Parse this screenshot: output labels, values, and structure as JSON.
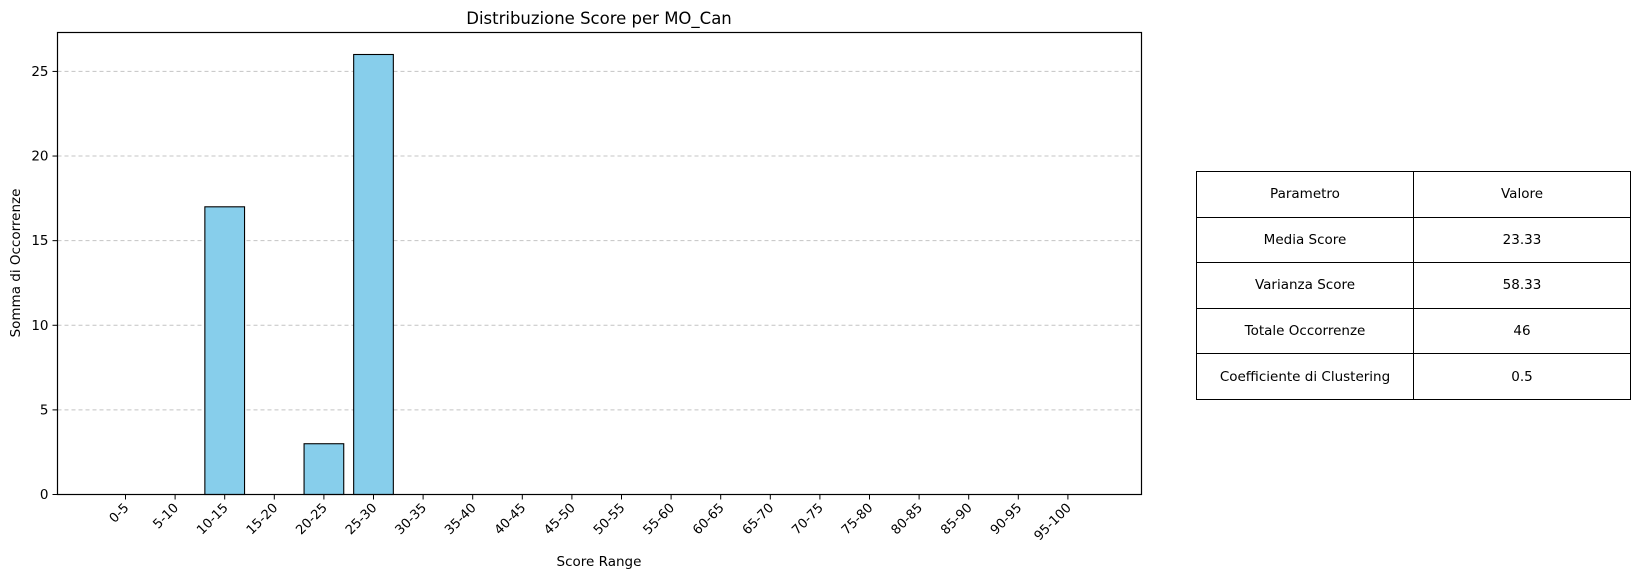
{
  "chart_data": {
    "type": "bar",
    "title": "Distribuzione Score per MO_Can",
    "xlabel": "Score Range",
    "ylabel": "Somma di Occorrenze",
    "categories": [
      "0-5",
      "5-10",
      "10-15",
      "15-20",
      "20-25",
      "25-30",
      "30-35",
      "35-40",
      "40-45",
      "45-50",
      "50-55",
      "55-60",
      "60-65",
      "65-70",
      "70-75",
      "75-80",
      "80-85",
      "85-90",
      "90-95",
      "95-100"
    ],
    "values": [
      0,
      0,
      17,
      0,
      3,
      26,
      0,
      0,
      0,
      0,
      0,
      0,
      0,
      0,
      0,
      0,
      0,
      0,
      0,
      0
    ],
    "ylim": [
      0,
      27.3
    ],
    "yticks": [
      0,
      5,
      10,
      15,
      20,
      25
    ],
    "grid": "y-dashed",
    "bar_color": "#87CEEB",
    "edge_color": "#000000"
  },
  "stats_table": {
    "header": [
      "Parametro",
      "Valore"
    ],
    "rows": [
      [
        "Media Score",
        "23.33"
      ],
      [
        "Varianza Score",
        "58.33"
      ],
      [
        "Totale Occorrenze",
        "46"
      ],
      [
        "Coefficiente di Clustering",
        "0.5"
      ]
    ]
  }
}
